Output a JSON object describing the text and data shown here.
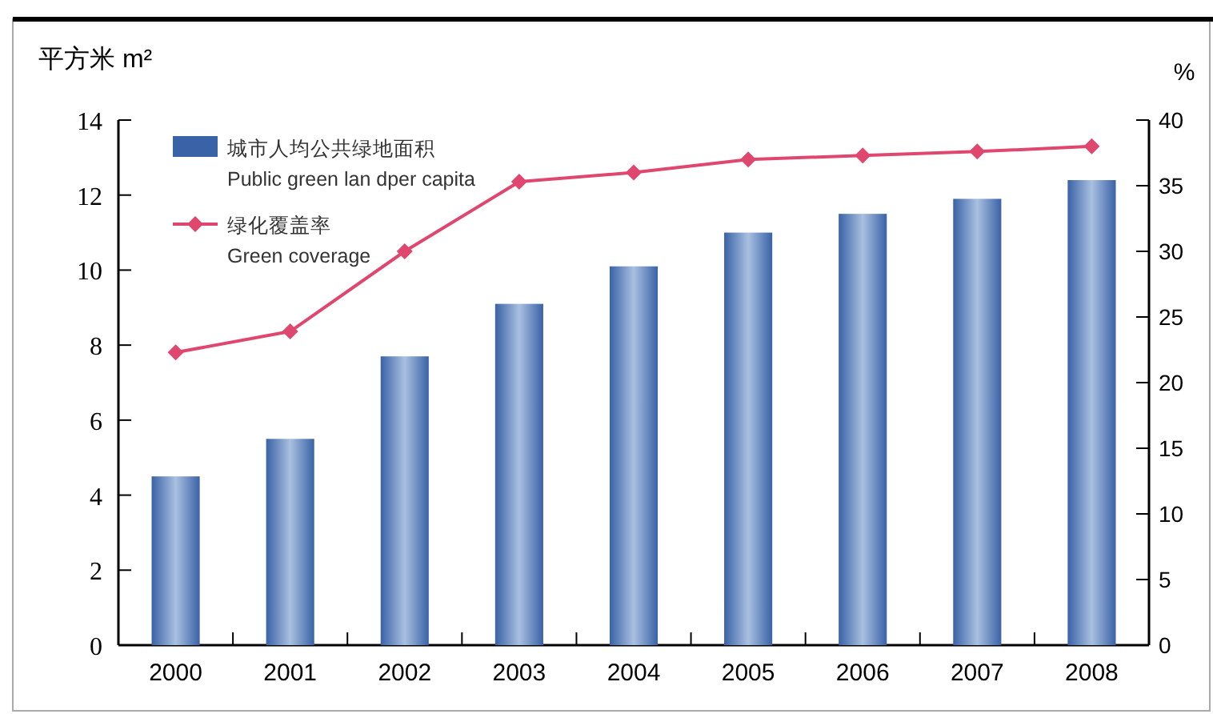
{
  "chart_data": {
    "type": "bar",
    "ylabel": "平方米 m²",
    "y2label": "%",
    "categories": [
      "2000",
      "2001",
      "2002",
      "2003",
      "2004",
      "2005",
      "2006",
      "2007",
      "2008"
    ],
    "series": [
      {
        "name": "城市人均公共绿地面积\nPublic green lan dper capita",
        "color": "#3a62a6",
        "values": [
          4.5,
          5.5,
          7.7,
          9.1,
          10.1,
          11.0,
          11.5,
          11.9,
          12.4
        ]
      },
      {
        "name": "绿化覆盖率\nGreen coverage",
        "type": "line",
        "axis": "y2",
        "color": "#e0476e",
        "values": [
          22.3,
          23.9,
          30.0,
          35.3,
          36.0,
          37.0,
          37.3,
          37.6,
          38.0
        ]
      }
    ],
    "ylim": [
      0,
      14
    ],
    "yticks": [
      0,
      2,
      4,
      6,
      8,
      10,
      12,
      14
    ],
    "y2lim": [
      0,
      40
    ],
    "y2ticks": [
      0,
      5,
      10,
      15,
      20,
      25,
      30,
      35,
      40
    ],
    "marker": "diamond",
    "grid": false,
    "legend": "top left"
  }
}
